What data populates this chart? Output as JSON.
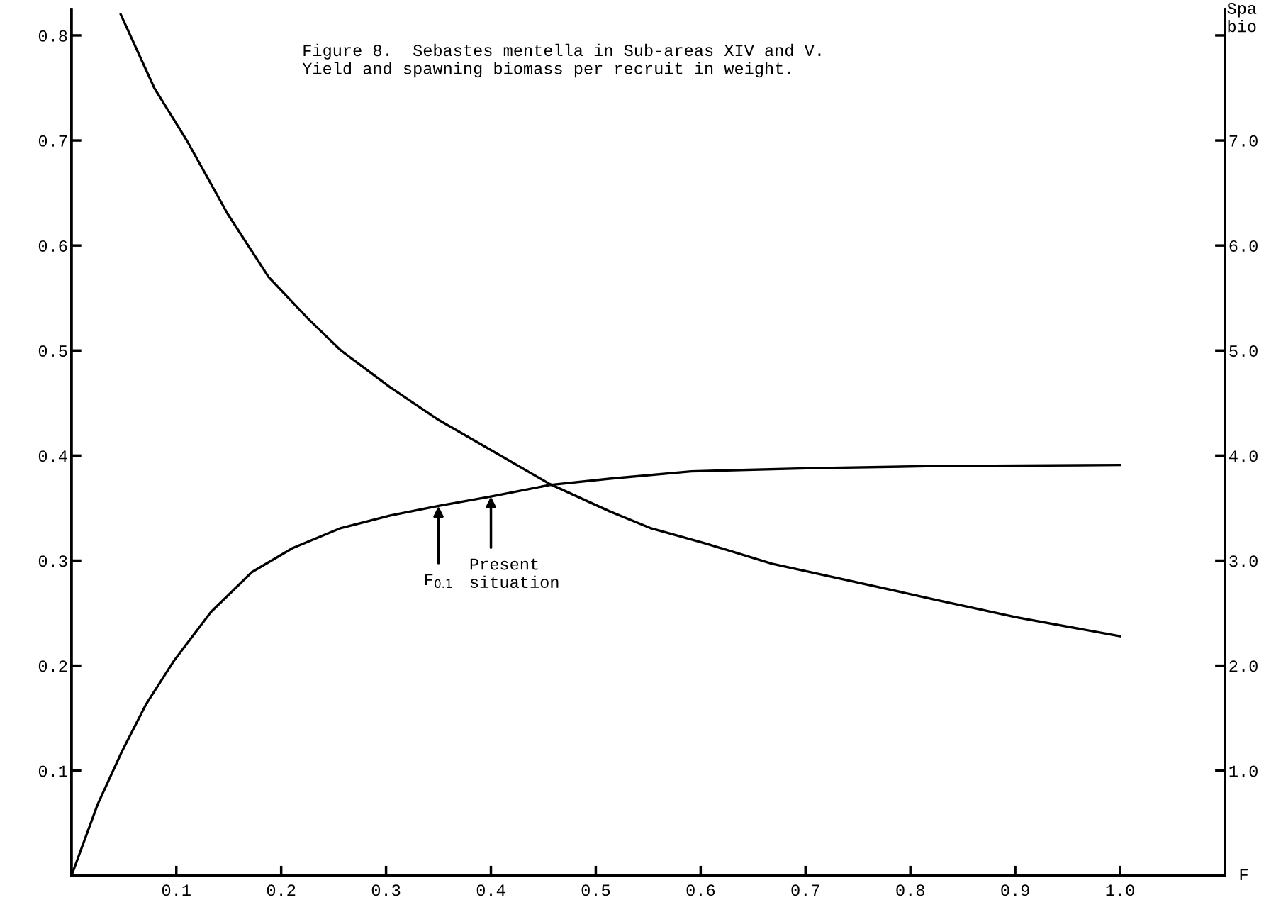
{
  "chart_data": {
    "type": "line",
    "title": "Figure 8.  Sebastes mentella in Sub-areas XIV and V.\nYield and spawning biomass per recruit in weight.",
    "xlabel": "F",
    "y2label": "Spa\nbio",
    "series": [
      {
        "color": "#000000",
        "x": [
          0,
          0.025,
          0.048,
          0.071,
          0.098,
          0.133,
          0.172,
          0.211,
          0.257,
          0.304,
          0.35,
          0.4,
          0.456,
          0.513,
          0.591,
          0.707,
          0.823,
          1.0
        ],
        "values": [
          0,
          0.068,
          0.118,
          0.163,
          0.205,
          0.251,
          0.289,
          0.312,
          0.331,
          0.343,
          0.352,
          0.361,
          0.372,
          0.378,
          0.385,
          0.388,
          0.39,
          0.391
        ]
      },
      {
        "color": "#000000",
        "axis": "y2",
        "x": [
          0.047,
          0.079,
          0.11,
          0.149,
          0.188,
          0.226,
          0.257,
          0.304,
          0.35,
          0.397,
          0.456,
          0.513,
          0.552,
          0.606,
          0.668,
          0.746,
          0.823,
          0.901,
          1.0
        ],
        "values": [
          8.2,
          7.5,
          7.0,
          6.3,
          5.7,
          5.3,
          5.0,
          4.65,
          4.34,
          4.07,
          3.73,
          3.47,
          3.31,
          3.16,
          2.97,
          2.8,
          2.63,
          2.46,
          2.28
        ]
      }
    ],
    "annotations": [
      {
        "text": "F$_{0.1}$",
        "x": 0.35,
        "y": 0.352
      },
      {
        "text": "Present\nsituation",
        "x": 0.4,
        "y": 0.361
      }
    ],
    "xlim": [
      0,
      1.1
    ],
    "ylim": [
      0,
      0.825
    ],
    "y2lim": [
      0,
      8.25
    ],
    "xticks": [
      0.1,
      0.2,
      0.3,
      0.4,
      0.5,
      0.6,
      0.7,
      0.8,
      0.9,
      {
        "value": 1,
        "label": "1.0"
      }
    ],
    "yticks": [
      0.1,
      0.2,
      0.3,
      0.4,
      0.5,
      0.6,
      0.7,
      0.8
    ],
    "y2ticks": [
      {
        "value": 1,
        "label": "1.0"
      },
      {
        "value": 2,
        "label": "2.0"
      },
      {
        "value": 3,
        "label": "3.0"
      },
      {
        "value": 4,
        "label": "4.0"
      },
      {
        "value": 5,
        "label": "5.0"
      },
      {
        "value": 6,
        "label": "6.0"
      },
      {
        "value": 7,
        "label": "7.0"
      },
      {
        "value": 8,
        "label": null
      }
    ],
    "grid": false,
    "legend": false,
    "marker": "none",
    "line_style": "solid"
  }
}
